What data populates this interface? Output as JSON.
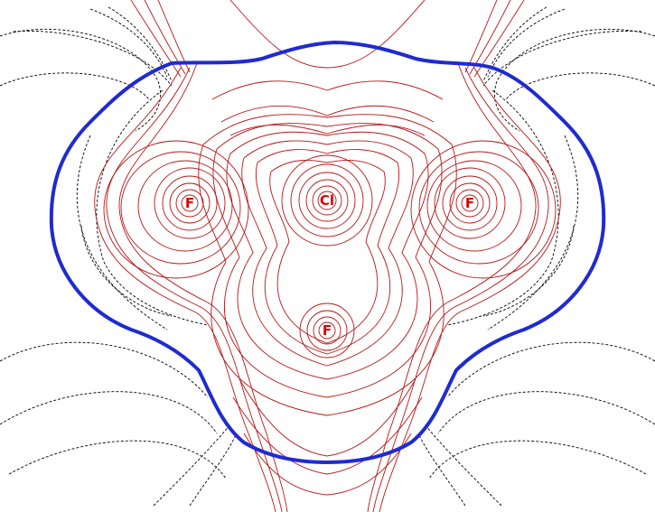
{
  "colors": {
    "background": "#ffffff",
    "outer_contour": "#1f2bd0",
    "positive_contours": "#b81616",
    "negative_contours": "#000000",
    "atom_label": "#e00000"
  },
  "atoms": [
    {
      "id": "cl",
      "label": "Cl"
    },
    {
      "id": "f-left",
      "label": "F"
    },
    {
      "id": "f-right",
      "label": "F"
    },
    {
      "id": "f-bottom",
      "label": "F"
    }
  ]
}
